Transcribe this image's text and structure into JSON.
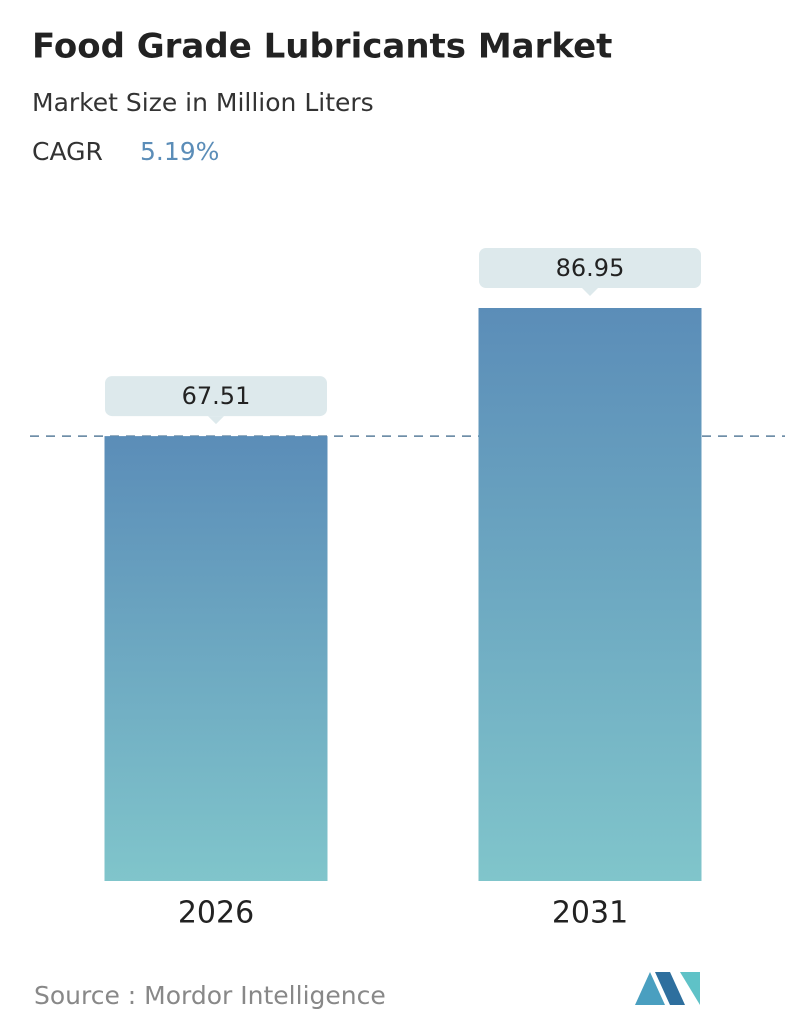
{
  "chart_data": {
    "type": "bar",
    "title": "Food Grade Lubricants Market",
    "subtitle": "Market Size in Million Liters",
    "cagr": {
      "label": "CAGR",
      "value": "5.19%"
    },
    "categories": [
      "2026",
      "2031"
    ],
    "values": [
      67.51,
      86.95
    ],
    "color": [
      "#5b8db8",
      "#80c5cb"
    ],
    "ylim": [
      0,
      100
    ],
    "source": "Source :  Mordor Intelligence"
  }
}
